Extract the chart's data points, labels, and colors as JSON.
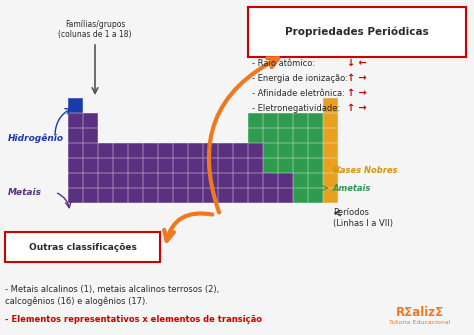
{
  "bg_color": "#f5f5f5",
  "purple": "#5b3080",
  "blue": "#1a3aad",
  "green": "#2e9b4e",
  "gold": "#e8a020",
  "orange_arrow": "#f07820",
  "red_box": "#cc0000",
  "dark_gray": "#2a2a2a",
  "dark_blue_label": "#1a3aad",
  "purple_label": "#5b3080",
  "green_label": "#2e9b4e",
  "gold_label": "#d4960a",
  "title": "Propriedades Periódicas",
  "label_familias": "Famílias/grupos\n(colunas de 1 a 18)",
  "label_hidrogenio": "Hidrogênio",
  "label_metais": "Metais",
  "label_gases": "Gases Nobres",
  "label_ametais": "Ametais",
  "label_periodos": "Períodos\n(Linhas I a VII)",
  "label_outras": "Outras classificações",
  "text_bottom1": "- Metais alcalinos (1), metais alcalinos terrosos (2),\ncalcogênios (16) e alogênios (17).",
  "text_bottom2": "- Elementos representativos x elementos de transição"
}
